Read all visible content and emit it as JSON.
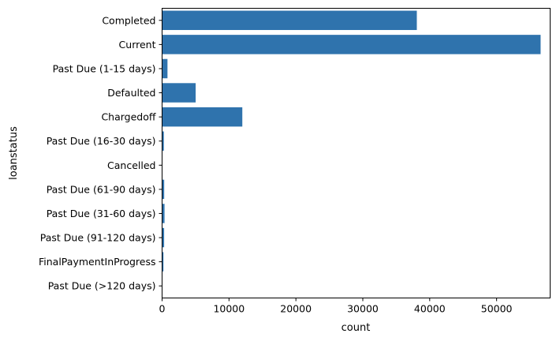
{
  "chart_data": {
    "type": "bar",
    "orientation": "horizontal",
    "categories": [
      "Completed",
      "Current",
      "Past Due (1-15 days)",
      "Defaulted",
      "Chargedoff",
      "Past Due (16-30 days)",
      "Cancelled",
      "Past Due (61-90 days)",
      "Past Due (31-60 days)",
      "Past Due (91-120 days)",
      "FinalPaymentInProgress",
      "Past Due (>120 days)"
    ],
    "values": [
      38074,
      56576,
      806,
      5018,
      11992,
      265,
      5,
      313,
      363,
      304,
      205,
      16
    ],
    "xlabel": "count",
    "ylabel": "loanstatus",
    "xlim": [
      0,
      58000
    ],
    "xticks": [
      0,
      10000,
      20000,
      30000,
      40000,
      50000
    ],
    "xtick_labels": [
      "0",
      "10000",
      "20000",
      "30000",
      "40000",
      "50000"
    ],
    "bar_color": "#2f73ad",
    "grid": false,
    "legend": "none"
  }
}
